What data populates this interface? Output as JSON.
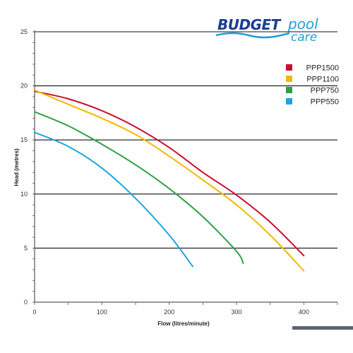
{
  "logo": {
    "brand_main": "BUDGET",
    "brand_sub": "pool",
    "brand_sub2": "care"
  },
  "chart_data": {
    "type": "line",
    "title": "",
    "xlabel": "Flow (litres/minute)",
    "ylabel": "Head (metres)",
    "xlim": [
      0,
      450
    ],
    "ylim": [
      0,
      25
    ],
    "x_ticks": [
      0,
      100,
      200,
      300,
      400
    ],
    "y_ticks": [
      0,
      5,
      10,
      15,
      20,
      25
    ],
    "grid": "horizontal",
    "legend_position": "top-right",
    "series": [
      {
        "name": "PPP1500",
        "color": "#c8102e",
        "x": [
          0,
          50,
          100,
          150,
          200,
          250,
          300,
          350,
          400
        ],
        "y": [
          19.5,
          18.8,
          17.7,
          16.2,
          14.3,
          12.0,
          9.9,
          7.4,
          4.3
        ]
      },
      {
        "name": "PPP1100",
        "color": "#f2b900",
        "x": [
          0,
          50,
          100,
          150,
          200,
          250,
          300,
          350,
          400
        ],
        "y": [
          19.6,
          18.3,
          17.0,
          15.5,
          13.5,
          11.3,
          9.0,
          6.2,
          2.9
        ]
      },
      {
        "name": "PPP750",
        "color": "#2ea043",
        "x": [
          0,
          50,
          100,
          150,
          200,
          250,
          300,
          310
        ],
        "y": [
          17.6,
          16.3,
          14.6,
          12.7,
          10.5,
          7.9,
          4.7,
          3.6
        ]
      },
      {
        "name": "PPP550",
        "color": "#1aa7e0",
        "x": [
          0,
          50,
          100,
          150,
          200,
          235
        ],
        "y": [
          15.7,
          14.4,
          12.4,
          9.6,
          6.2,
          3.3
        ]
      }
    ]
  }
}
